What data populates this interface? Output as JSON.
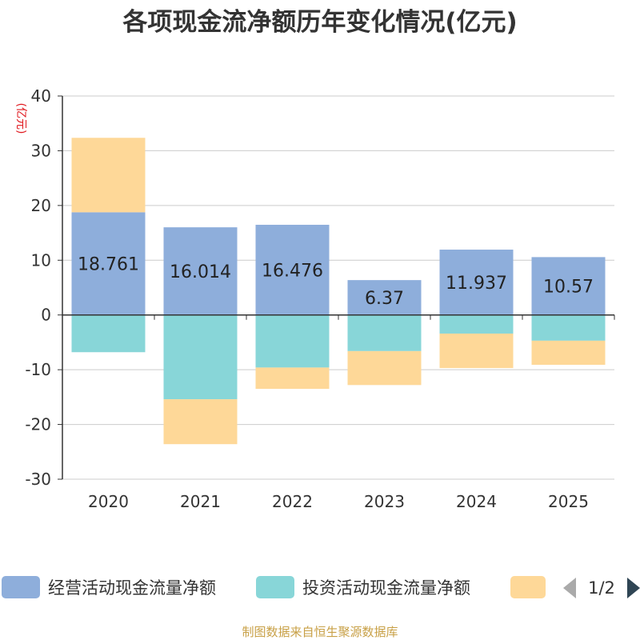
{
  "chart_data": {
    "type": "bar",
    "stacked": true,
    "title": "各项现金流净额历年变化情况(亿元)",
    "ylabel": "(亿元)",
    "xlabel": "",
    "ylim": [
      -30,
      40
    ],
    "yticks": [
      40,
      30,
      20,
      10,
      0,
      -10,
      -20,
      -30
    ],
    "categories": [
      "2020",
      "2021",
      "2022",
      "2023",
      "2024",
      "2025"
    ],
    "series": [
      {
        "name": "经营活动现金流量净额",
        "color": "#8eaedb",
        "values": [
          18.761,
          16.014,
          16.476,
          6.37,
          11.937,
          10.57
        ],
        "labels": [
          "18.761",
          "16.014",
          "16.476",
          "6.37",
          "11.937",
          "10.57"
        ]
      },
      {
        "name": "投资活动现金流量净额",
        "color": "#88d6d8",
        "values": [
          -6.8,
          -15.4,
          -9.6,
          -6.6,
          -3.4,
          -4.7
        ]
      },
      {
        "name": "",
        "color": "#fed898",
        "values": [
          13.6,
          -8.2,
          -3.9,
          -6.2,
          -6.3,
          -4.4
        ]
      }
    ],
    "legend": {
      "position": "bottom",
      "page": "1/2"
    }
  },
  "source": "制图数据来自恒生聚源数据库"
}
